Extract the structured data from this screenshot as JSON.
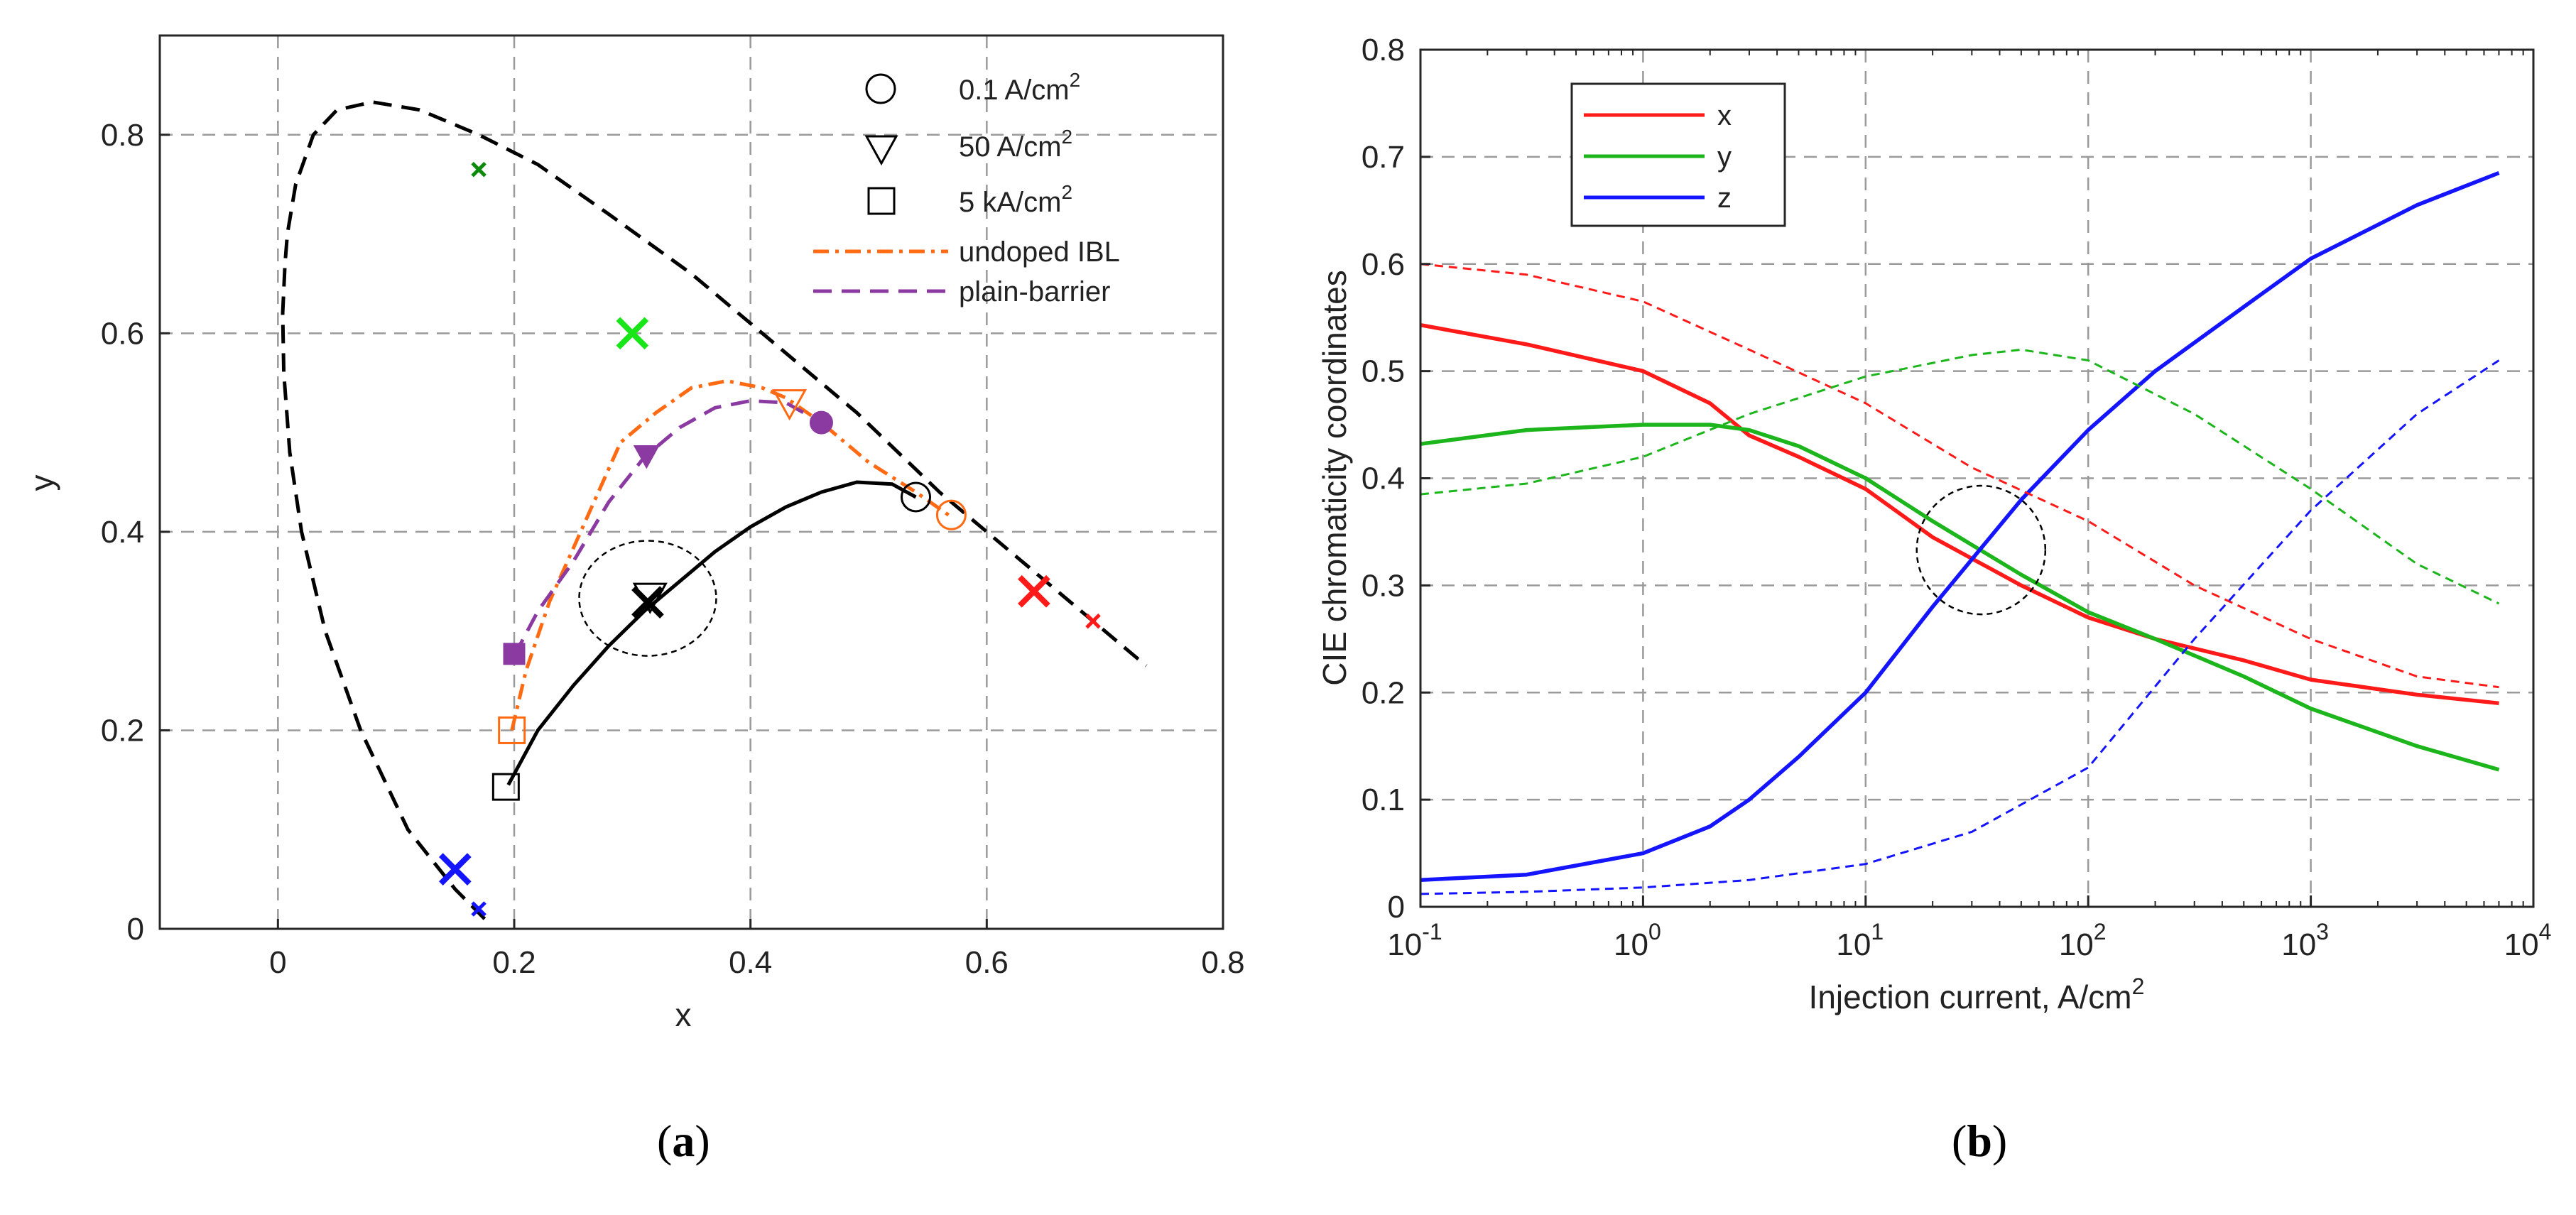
{
  "chart_data": [
    {
      "panel": "a",
      "type": "line",
      "title": "",
      "xlabel": "x",
      "ylabel": "y",
      "xlim": [
        -0.1,
        0.8
      ],
      "ylim": [
        0,
        0.9
      ],
      "xticks": [
        0,
        0.2,
        0.4,
        0.6,
        0.8
      ],
      "xtick_labels": [
        "0",
        "0.2",
        "0.4",
        "0.6",
        "0.8"
      ],
      "yticks": [
        0,
        0.2,
        0.4,
        0.6,
        0.8
      ],
      "ytick_labels": [
        "0",
        "0.2",
        "0.4",
        "0.6",
        "0.8"
      ],
      "grid": true,
      "legend_position": "top-right",
      "legend": [
        {
          "label": "0.1 A/cm",
          "sup": "2",
          "marker": "circle"
        },
        {
          "label": "50 A/cm",
          "sup": "2",
          "marker": "triangle-down"
        },
        {
          "label": "5 kA/cm",
          "sup": "2",
          "marker": "square"
        },
        {
          "label": "undoped IBL",
          "line": "dash-dot",
          "color": "#ff6a13"
        },
        {
          "label": "plain-barrier",
          "line": "dash",
          "color": "#8a3aa0"
        }
      ],
      "series": [
        {
          "name": "spectral locus",
          "style": "dash",
          "color": "#000000",
          "x": [
            0.175,
            0.15,
            0.11,
            0.07,
            0.04,
            0.02,
            0.01,
            0.005,
            0.004,
            0.006,
            0.008,
            0.015,
            0.03,
            0.05,
            0.08,
            0.12,
            0.17,
            0.22,
            0.28,
            0.35,
            0.42,
            0.49,
            0.56,
            0.63,
            0.69,
            0.735
          ],
          "y": [
            0.01,
            0.04,
            0.1,
            0.2,
            0.3,
            0.4,
            0.48,
            0.56,
            0.62,
            0.67,
            0.7,
            0.75,
            0.8,
            0.825,
            0.833,
            0.825,
            0.8,
            0.77,
            0.72,
            0.66,
            0.59,
            0.52,
            0.44,
            0.37,
            0.31,
            0.265
          ]
        },
        {
          "name": "reference white-LED locus",
          "style": "solid",
          "color": "#000000",
          "x": [
            0.195,
            0.22,
            0.25,
            0.28,
            0.31,
            0.34,
            0.37,
            0.4,
            0.43,
            0.46,
            0.49,
            0.52,
            0.54
          ],
          "y": [
            0.145,
            0.2,
            0.245,
            0.285,
            0.32,
            0.35,
            0.38,
            0.405,
            0.425,
            0.44,
            0.45,
            0.448,
            0.435
          ]
        },
        {
          "name": "undoped IBL",
          "style": "dash-dot",
          "color": "#ff6a13",
          "x": [
            0.198,
            0.21,
            0.23,
            0.26,
            0.29,
            0.32,
            0.35,
            0.38,
            0.41,
            0.43,
            0.46,
            0.5,
            0.54,
            0.57
          ],
          "y": [
            0.2,
            0.26,
            0.33,
            0.41,
            0.49,
            0.52,
            0.545,
            0.552,
            0.545,
            0.535,
            0.51,
            0.47,
            0.44,
            0.415
          ]
        },
        {
          "name": "plain-barrier",
          "style": "dash",
          "color": "#8a3aa0",
          "x": [
            0.2,
            0.22,
            0.25,
            0.28,
            0.31,
            0.34,
            0.37,
            0.4,
            0.43,
            0.46
          ],
          "y": [
            0.275,
            0.32,
            0.37,
            0.43,
            0.475,
            0.505,
            0.525,
            0.532,
            0.53,
            0.51
          ]
        }
      ],
      "markers": [
        {
          "name": "white-0.1",
          "shape": "circle-open",
          "color": "#000000",
          "x": 0.54,
          "y": 0.435
        },
        {
          "name": "white-50",
          "shape": "triangle-open",
          "color": "#000000",
          "x": 0.315,
          "y": 0.335
        },
        {
          "name": "white-5k",
          "shape": "square-open",
          "color": "#000000",
          "x": 0.193,
          "y": 0.143
        },
        {
          "name": "ibl-0.1",
          "shape": "circle-open",
          "color": "#ff6a13",
          "x": 0.57,
          "y": 0.417
        },
        {
          "name": "ibl-50",
          "shape": "triangle-open",
          "color": "#ff6a13",
          "x": 0.433,
          "y": 0.53
        },
        {
          "name": "ibl-5k",
          "shape": "square-open",
          "color": "#ff6a13",
          "x": 0.198,
          "y": 0.2
        },
        {
          "name": "plain-0.1",
          "shape": "circle-filled",
          "color": "#8a3aa0",
          "x": 0.46,
          "y": 0.51
        },
        {
          "name": "plain-50",
          "shape": "triangle-filled",
          "color": "#8a3aa0",
          "x": 0.312,
          "y": 0.477
        },
        {
          "name": "plain-5k",
          "shape": "square-filled",
          "color": "#8a3aa0",
          "x": 0.2,
          "y": 0.277
        },
        {
          "name": "green-primary-large",
          "shape": "x",
          "color": "#19e619",
          "x": 0.3,
          "y": 0.6,
          "size": "large"
        },
        {
          "name": "green-primary-small",
          "shape": "x",
          "color": "#0b8a0b",
          "x": 0.17,
          "y": 0.765,
          "size": "small"
        },
        {
          "name": "red-primary-large",
          "shape": "x",
          "color": "#ff1a1a",
          "x": 0.64,
          "y": 0.34,
          "size": "large"
        },
        {
          "name": "red-primary-small",
          "shape": "x",
          "color": "#ff1a1a",
          "x": 0.69,
          "y": 0.31,
          "size": "small"
        },
        {
          "name": "blue-primary-large",
          "shape": "x",
          "color": "#1414ff",
          "x": 0.15,
          "y": 0.06,
          "size": "large"
        },
        {
          "name": "blue-primary-small",
          "shape": "x",
          "color": "#1414ff",
          "x": 0.17,
          "y": 0.02,
          "size": "small"
        },
        {
          "name": "white-point",
          "shape": "x",
          "color": "#000000",
          "x": 0.313,
          "y": 0.329,
          "size": "large"
        }
      ],
      "annotation_circle": {
        "x": 0.313,
        "y": 0.333,
        "r": 0.058
      }
    },
    {
      "panel": "b",
      "type": "line",
      "title": "",
      "xlabel": "Injection current, A/cm",
      "xlabel_sup": "2",
      "ylabel": "CIE chromaticity coordinates",
      "xscale": "log",
      "xlim": [
        0.1,
        10000
      ],
      "ylim": [
        0,
        0.8
      ],
      "xtick_exponents": [
        "-1",
        "0",
        "1",
        "2",
        "3",
        "4"
      ],
      "xtick_base": "10",
      "yticks": [
        0,
        0.1,
        0.2,
        0.3,
        0.4,
        0.5,
        0.6,
        0.7,
        0.8
      ],
      "ytick_labels": [
        "0",
        "0.1",
        "0.2",
        "0.3",
        "0.4",
        "0.5",
        "0.6",
        "0.7",
        "0.8"
      ],
      "grid": true,
      "legend_position": "top-left",
      "legend": [
        {
          "label": "x",
          "color": "#ff1a1a"
        },
        {
          "label": "y",
          "color": "#1cb51c"
        },
        {
          "label": "z",
          "color": "#1414ff"
        }
      ],
      "series": [
        {
          "name": "x",
          "style": "solid",
          "color": "#ff1a1a",
          "x": [
            0.1,
            0.3,
            1,
            2,
            3,
            5,
            10,
            20,
            50,
            100,
            200,
            500,
            1000,
            3000,
            7000
          ],
          "y": [
            0.543,
            0.525,
            0.5,
            0.47,
            0.44,
            0.42,
            0.39,
            0.345,
            0.3,
            0.27,
            0.25,
            0.23,
            0.212,
            0.198,
            0.19
          ]
        },
        {
          "name": "y",
          "style": "solid",
          "color": "#1cb51c",
          "x": [
            0.1,
            0.3,
            1,
            2,
            3,
            5,
            10,
            20,
            50,
            100,
            200,
            500,
            1000,
            3000,
            7000
          ],
          "y": [
            0.432,
            0.445,
            0.45,
            0.45,
            0.445,
            0.43,
            0.4,
            0.36,
            0.31,
            0.275,
            0.25,
            0.215,
            0.185,
            0.15,
            0.128
          ]
        },
        {
          "name": "z",
          "style": "solid",
          "color": "#1414ff",
          "x": [
            0.1,
            0.3,
            1,
            2,
            3,
            5,
            10,
            20,
            50,
            100,
            200,
            500,
            1000,
            3000,
            7000
          ],
          "y": [
            0.025,
            0.03,
            0.05,
            0.075,
            0.1,
            0.14,
            0.2,
            0.28,
            0.38,
            0.445,
            0.5,
            0.56,
            0.605,
            0.655,
            0.685
          ]
        },
        {
          "name": "x-ref",
          "style": "dash",
          "color": "#ff1a1a",
          "x": [
            0.1,
            0.3,
            1,
            3,
            10,
            30,
            100,
            300,
            1000,
            3000,
            7000
          ],
          "y": [
            0.6,
            0.59,
            0.565,
            0.52,
            0.47,
            0.41,
            0.36,
            0.3,
            0.25,
            0.215,
            0.205
          ]
        },
        {
          "name": "y-ref",
          "style": "dash",
          "color": "#1cb51c",
          "x": [
            0.1,
            0.3,
            1,
            3,
            10,
            30,
            50,
            100,
            300,
            1000,
            3000,
            7000
          ],
          "y": [
            0.385,
            0.395,
            0.42,
            0.46,
            0.495,
            0.515,
            0.52,
            0.51,
            0.46,
            0.39,
            0.32,
            0.283
          ]
        },
        {
          "name": "z-ref",
          "style": "dash",
          "color": "#1414ff",
          "x": [
            0.1,
            0.3,
            1,
            3,
            10,
            30,
            100,
            300,
            1000,
            3000,
            7000
          ],
          "y": [
            0.012,
            0.014,
            0.018,
            0.025,
            0.04,
            0.07,
            0.13,
            0.25,
            0.37,
            0.46,
            0.51
          ]
        }
      ],
      "annotation_circle": {
        "x": 33,
        "y": 0.333,
        "ry": 0.06
      }
    }
  ],
  "panel_labels": {
    "a": "a",
    "b": "b"
  }
}
